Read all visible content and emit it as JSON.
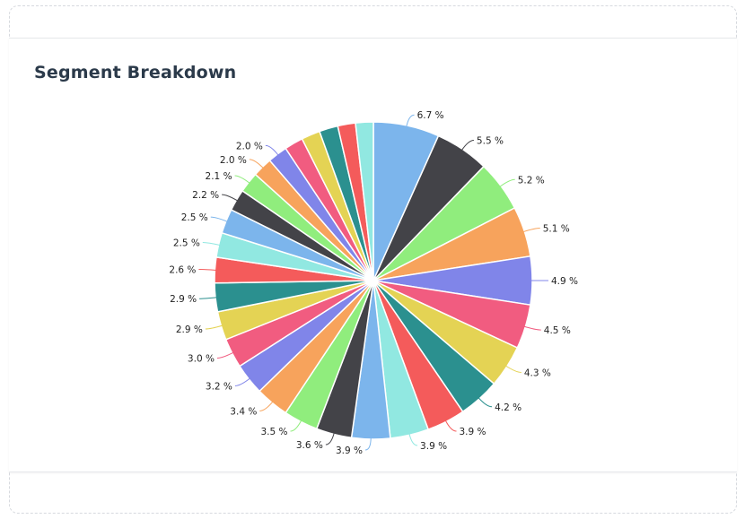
{
  "chart_data": {
    "type": "pie",
    "title": "Segment Breakdown",
    "start_angle": "top",
    "direction": "clockwise",
    "values": [
      6.7,
      5.5,
      5.2,
      5.1,
      4.9,
      4.5,
      4.3,
      4.2,
      3.9,
      3.9,
      3.9,
      3.6,
      3.5,
      3.4,
      3.2,
      3.0,
      2.9,
      2.9,
      2.6,
      2.5,
      2.5,
      2.2,
      2.1,
      2.0,
      2.0,
      1.9,
      1.9,
      1.9,
      1.8,
      1.8
    ],
    "labels": [
      "6.7 %",
      "5.5 %",
      "5.2 %",
      "5.1 %",
      "4.9 %",
      "4.5 %",
      "4.3 %",
      "4.2 %",
      "3.9 %",
      "3.9 %",
      "3.9 %",
      "3.6 %",
      "3.5 %",
      "3.4 %",
      "3.2 %",
      "3.0 %",
      "2.9 %",
      "2.9 %",
      "2.6 %",
      "2.5 %",
      "2.5 %",
      "2.2 %",
      "2.1 %",
      "2.0 %",
      "2.0 %",
      "",
      "",
      "",
      "",
      ""
    ],
    "colors": [
      "#7cb5ec",
      "#434348",
      "#90ed7d",
      "#f7a35c",
      "#8085e9",
      "#f15c80",
      "#e4d354",
      "#2b908f",
      "#f45b5b",
      "#91e8e1"
    ]
  }
}
